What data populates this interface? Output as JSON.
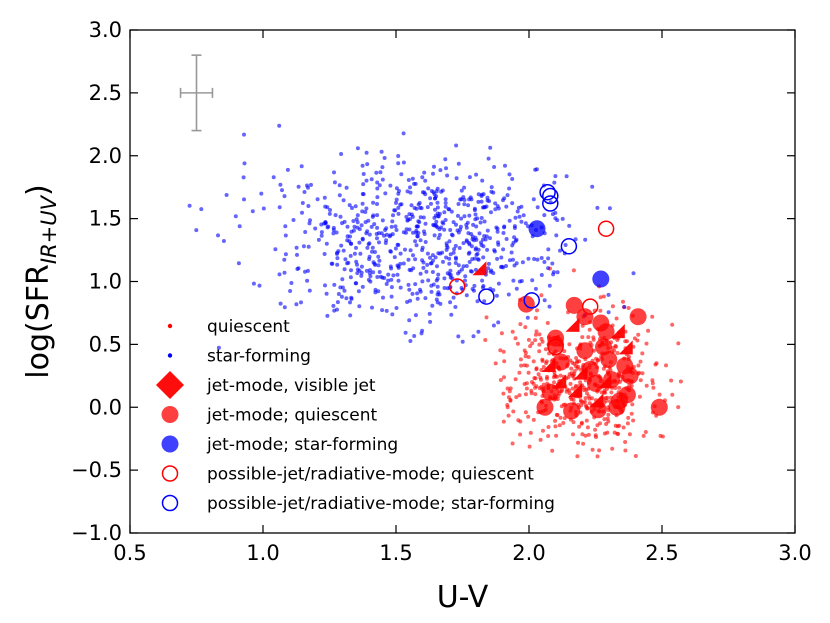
{
  "chart_data": {
    "type": "scatter",
    "title": "",
    "xlabel": "U-V",
    "ylabel_main": "log(SFR",
    "ylabel_sub": "IR+UV",
    "ylabel_close": ")",
    "xlim": [
      0.5,
      3.0
    ],
    "ylim": [
      -1.0,
      3.0
    ],
    "xticks": [
      0.5,
      1.0,
      1.5,
      2.0,
      2.5,
      3.0
    ],
    "xtick_labels": [
      "0.5",
      "1.0",
      "1.5",
      "2.0",
      "2.5",
      "3.0"
    ],
    "yticks": [
      -1.0,
      -0.5,
      0.0,
      0.5,
      1.0,
      1.5,
      2.0,
      2.5,
      3.0
    ],
    "ytick_labels": [
      "−1.0",
      "−0.5",
      "0.0",
      "0.5",
      "1.0",
      "1.5",
      "2.0",
      "2.5",
      "3.0"
    ],
    "grid": false,
    "legend_position": "lower-left",
    "error_bar": {
      "x": 0.75,
      "y": 2.5,
      "xerr": 0.06,
      "yerr": 0.3,
      "color": "#999999"
    },
    "colors": {
      "quiescent": "#ff0000",
      "star_forming": "#0000ff"
    },
    "series": [
      {
        "name": "quiescent",
        "marker": "small-dot",
        "color": "#ff0000",
        "cloud": {
          "count": 520,
          "seed": 7,
          "x_mean": 2.2,
          "x_sd": 0.14,
          "y_mean": 0.22,
          "y_sd": 0.27,
          "x_range": [
            1.72,
            2.58
          ],
          "y_range": [
            -0.5,
            1.22
          ]
        }
      },
      {
        "name": "star-forming",
        "marker": "small-dot",
        "color": "#0000ff",
        "cloud": {
          "count": 760,
          "seed": 13,
          "x_mean": 1.58,
          "x_sd": 0.28,
          "y_mean": 1.32,
          "y_sd": 0.32,
          "x_range": [
            0.62,
            2.43
          ],
          "y_range": [
            0.45,
            2.6
          ]
        }
      },
      {
        "name": "jet-mode, visible jet",
        "marker": "diamond",
        "color": "#ff0000",
        "points": [
          [
            1.84,
            1.05
          ],
          [
            2.1,
            0.28
          ],
          [
            2.19,
            0.6
          ],
          [
            2.14,
            0.15
          ],
          [
            2.22,
            0.22
          ],
          [
            2.28,
            0.0
          ],
          [
            2.31,
            0.15
          ],
          [
            2.36,
            0.55
          ],
          [
            2.39,
            0.42
          ],
          [
            2.2,
            0.08
          ]
        ]
      },
      {
        "name": "jet-mode; quiescent",
        "marker": "circle-filled",
        "color": "#ff0000",
        "points": [
          [
            1.99,
            0.82
          ],
          [
            2.06,
            0.0
          ],
          [
            2.1,
            0.5
          ],
          [
            2.12,
            0.36
          ],
          [
            2.17,
            0.81
          ],
          [
            2.21,
            0.45
          ],
          [
            2.23,
            0.3
          ],
          [
            2.27,
            0.67
          ],
          [
            2.29,
            0.6
          ],
          [
            2.3,
            0.38
          ],
          [
            2.31,
            0.22
          ],
          [
            2.34,
            0.05
          ],
          [
            2.37,
            0.1
          ],
          [
            2.41,
            0.72
          ],
          [
            2.38,
            0.25
          ],
          [
            2.26,
            -0.02
          ],
          [
            2.33,
            0.0
          ],
          [
            2.49,
            0.0
          ],
          [
            2.16,
            -0.03
          ],
          [
            2.21,
            0.72
          ],
          [
            2.28,
            0.48
          ],
          [
            2.08,
            0.12
          ],
          [
            2.36,
            0.33
          ],
          [
            2.25,
            0.19
          ],
          [
            2.1,
            0.55
          ]
        ]
      },
      {
        "name": "jet-mode; star-forming",
        "marker": "circle-filled",
        "color": "#0000ff",
        "points": [
          [
            2.03,
            1.42
          ],
          [
            2.27,
            1.02
          ]
        ]
      },
      {
        "name": "possible-jet/radiative-mode; quiescent",
        "marker": "circle-open",
        "color": "#ff0000",
        "points": [
          [
            1.73,
            0.96
          ],
          [
            2.29,
            1.42
          ],
          [
            2.23,
            0.8
          ],
          [
            2.1,
            0.48
          ]
        ]
      },
      {
        "name": "possible-jet/radiative-mode; star-forming",
        "marker": "circle-open",
        "color": "#0000ff",
        "points": [
          [
            2.07,
            1.71
          ],
          [
            2.08,
            1.62
          ],
          [
            2.15,
            1.28
          ],
          [
            1.84,
            0.88
          ],
          [
            2.01,
            0.85
          ],
          [
            2.08,
            1.68
          ]
        ]
      }
    ]
  }
}
